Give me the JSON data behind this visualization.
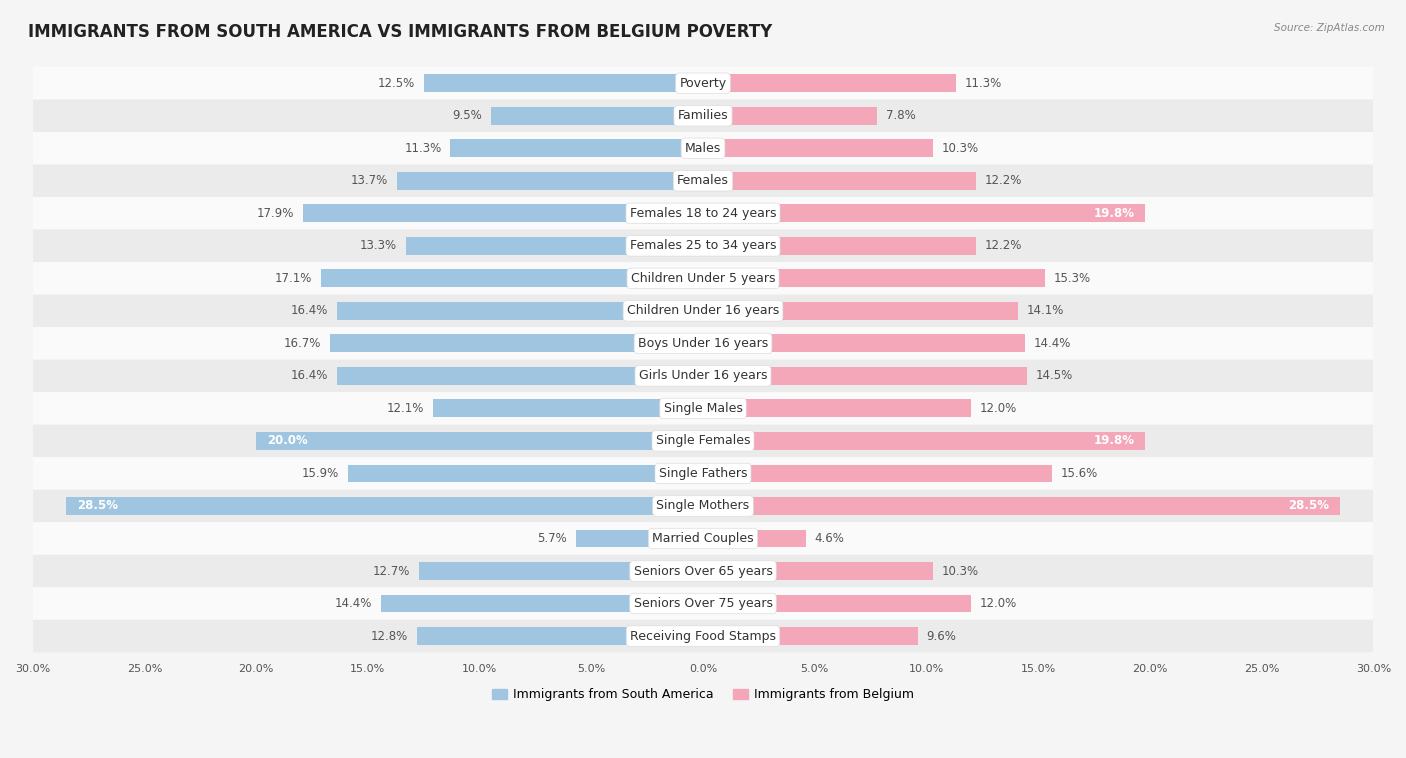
{
  "title": "IMMIGRANTS FROM SOUTH AMERICA VS IMMIGRANTS FROM BELGIUM POVERTY",
  "source": "Source: ZipAtlas.com",
  "categories": [
    "Poverty",
    "Families",
    "Males",
    "Females",
    "Females 18 to 24 years",
    "Females 25 to 34 years",
    "Children Under 5 years",
    "Children Under 16 years",
    "Boys Under 16 years",
    "Girls Under 16 years",
    "Single Males",
    "Single Females",
    "Single Fathers",
    "Single Mothers",
    "Married Couples",
    "Seniors Over 65 years",
    "Seniors Over 75 years",
    "Receiving Food Stamps"
  ],
  "south_america": [
    12.5,
    9.5,
    11.3,
    13.7,
    17.9,
    13.3,
    17.1,
    16.4,
    16.7,
    16.4,
    12.1,
    20.0,
    15.9,
    28.5,
    5.7,
    12.7,
    14.4,
    12.8
  ],
  "belgium": [
    11.3,
    7.8,
    10.3,
    12.2,
    19.8,
    12.2,
    15.3,
    14.1,
    14.4,
    14.5,
    12.0,
    19.8,
    15.6,
    28.5,
    4.6,
    10.3,
    12.0,
    9.6
  ],
  "color_south_america": "#9fc5e0",
  "color_belgium": "#f4a7b9",
  "xlim": 30.0,
  "background_color": "#f5f5f5",
  "row_bg_light": "#fafafa",
  "row_bg_dark": "#ebebeb",
  "title_fontsize": 12,
  "label_fontsize": 9,
  "value_fontsize": 8.5,
  "tick_fontsize": 8,
  "highlight_threshold": 19.5
}
